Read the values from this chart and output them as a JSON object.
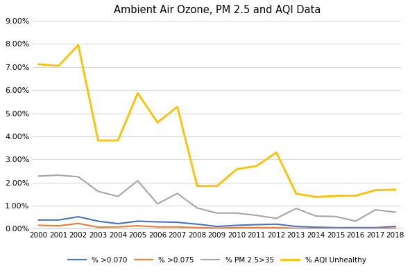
{
  "title": "Ambient Air Ozone, PM 2.5 and AQI Data",
  "years": [
    2000,
    2001,
    2002,
    2003,
    2004,
    2005,
    2006,
    2007,
    2008,
    2009,
    2010,
    2011,
    2012,
    2013,
    2014,
    2015,
    2016,
    2017,
    2018
  ],
  "pct_070": [
    0.0038,
    0.0038,
    0.0052,
    0.0033,
    0.0022,
    0.0033,
    0.003,
    0.0028,
    0.002,
    0.001,
    0.0015,
    0.0018,
    0.002,
    0.001,
    0.0007,
    0.0005,
    0.0005,
    0.0005,
    0.001
  ],
  "pct_075": [
    0.0015,
    0.0013,
    0.0023,
    0.0007,
    0.0008,
    0.0013,
    0.0008,
    0.0008,
    0.0005,
    0.0003,
    0.0005,
    0.0005,
    0.0005,
    0.0002,
    0.0002,
    0.0002,
    0.0002,
    0.0002,
    0.0003
  ],
  "pct_pm25": [
    0.0228,
    0.0232,
    0.0225,
    0.0162,
    0.014,
    0.0208,
    0.0108,
    0.0153,
    0.009,
    0.0068,
    0.0068,
    0.0058,
    0.0045,
    0.0088,
    0.0055,
    0.0053,
    0.0033,
    0.0082,
    0.0072
  ],
  "pct_aqi": [
    0.0712,
    0.0705,
    0.0795,
    0.0382,
    0.0382,
    0.0587,
    0.046,
    0.0528,
    0.0185,
    0.0185,
    0.0258,
    0.0272,
    0.033,
    0.0152,
    0.0138,
    0.0142,
    0.0143,
    0.0167,
    0.017
  ],
  "color_070": "#4472C4",
  "color_075": "#ED7D31",
  "color_pm25": "#A5A5A5",
  "color_aqi": "#FFC000",
  "label_070": "% >0.070",
  "label_075": "% >0.075",
  "label_pm25": "% PM 2.5>35",
  "label_aqi": "% AQI Unhealthy",
  "ylim": [
    0.0,
    0.09
  ],
  "yticks": [
    0.0,
    0.01,
    0.02,
    0.03,
    0.04,
    0.05,
    0.06,
    0.07,
    0.08,
    0.09
  ],
  "background_color": "#FFFFFF",
  "grid_color": "#D9D9D9"
}
